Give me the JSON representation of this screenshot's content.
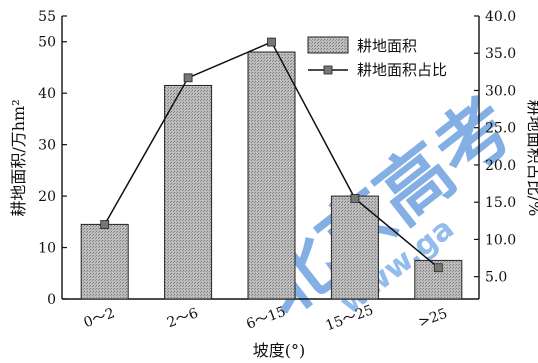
{
  "chart_data": {
    "type": "bar+line",
    "xlabel": "坡度(°)",
    "ylabel_left": "耕地面积/万hm²",
    "ylabel_right": "耕地面积占比/%",
    "categories": [
      "0～2",
      "2～6",
      "6～15",
      "15～25",
      ">25"
    ],
    "series": [
      {
        "name": "耕地面积",
        "type": "bar",
        "axis": "left",
        "values": [
          14.5,
          41.5,
          48.0,
          20.0,
          7.5
        ]
      },
      {
        "name": "耕地面积占比",
        "type": "line",
        "axis": "right",
        "values": [
          12.0,
          31.7,
          36.5,
          15.5,
          6.2
        ]
      }
    ],
    "left_axis": {
      "min": 0,
      "max": 55,
      "ticks": [
        0,
        10,
        20,
        30,
        40,
        50,
        55
      ]
    },
    "right_axis": {
      "min": 2.0,
      "max": 40.0,
      "ticks": [
        "5.0",
        "10.0",
        "15.0",
        "20.0",
        "25.0",
        "30.0",
        "35.0",
        "40.0"
      ]
    },
    "legend_position": "top-right",
    "grid": false,
    "colors": {
      "bar_fill": "#a8a8a8",
      "line": "#111111",
      "marker": "#777777",
      "watermark": "#1f6fd0"
    }
  },
  "watermark": {
    "chinese": "北京高考",
    "url": "www.ga"
  }
}
